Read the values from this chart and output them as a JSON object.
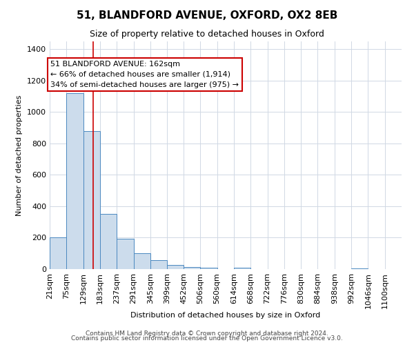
{
  "title": "51, BLANDFORD AVENUE, OXFORD, OX2 8EB",
  "subtitle": "Size of property relative to detached houses in Oxford",
  "xlabel": "Distribution of detached houses by size in Oxford",
  "ylabel": "Number of detached properties",
  "bin_labels": [
    "21sqm",
    "75sqm",
    "129sqm",
    "183sqm",
    "237sqm",
    "291sqm",
    "345sqm",
    "399sqm",
    "452sqm",
    "506sqm",
    "560sqm",
    "614sqm",
    "668sqm",
    "722sqm",
    "776sqm",
    "830sqm",
    "884sqm",
    "938sqm",
    "992sqm",
    "1046sqm",
    "1100sqm"
  ],
  "bin_edges": [
    21,
    75,
    129,
    183,
    237,
    291,
    345,
    399,
    452,
    506,
    560,
    614,
    668,
    722,
    776,
    830,
    884,
    938,
    992,
    1046,
    1100
  ],
  "counts": [
    200,
    1120,
    880,
    350,
    195,
    100,
    55,
    25,
    15,
    10,
    0,
    10,
    0,
    0,
    0,
    0,
    0,
    0,
    5,
    0,
    0
  ],
  "property_size": 162,
  "annotation_title": "51 BLANDFORD AVENUE: 162sqm",
  "annotation_line1": "← 66% of detached houses are smaller (1,914)",
  "annotation_line2": "34% of semi-detached houses are larger (975) →",
  "bar_color": "#ccdcec",
  "bar_edge_color": "#4a88c0",
  "vline_color": "#cc0000",
  "annotation_box_edge_color": "#cc0000",
  "background_color": "#ffffff",
  "grid_color": "#d0d8e4",
  "footer_line1": "Contains HM Land Registry data © Crown copyright and database right 2024.",
  "footer_line2": "Contains public sector information licensed under the Open Government Licence v3.0.",
  "ylim": [
    0,
    1450
  ],
  "title_fontsize": 11,
  "subtitle_fontsize": 9,
  "annotation_fontsize": 8,
  "footer_fontsize": 6.5
}
